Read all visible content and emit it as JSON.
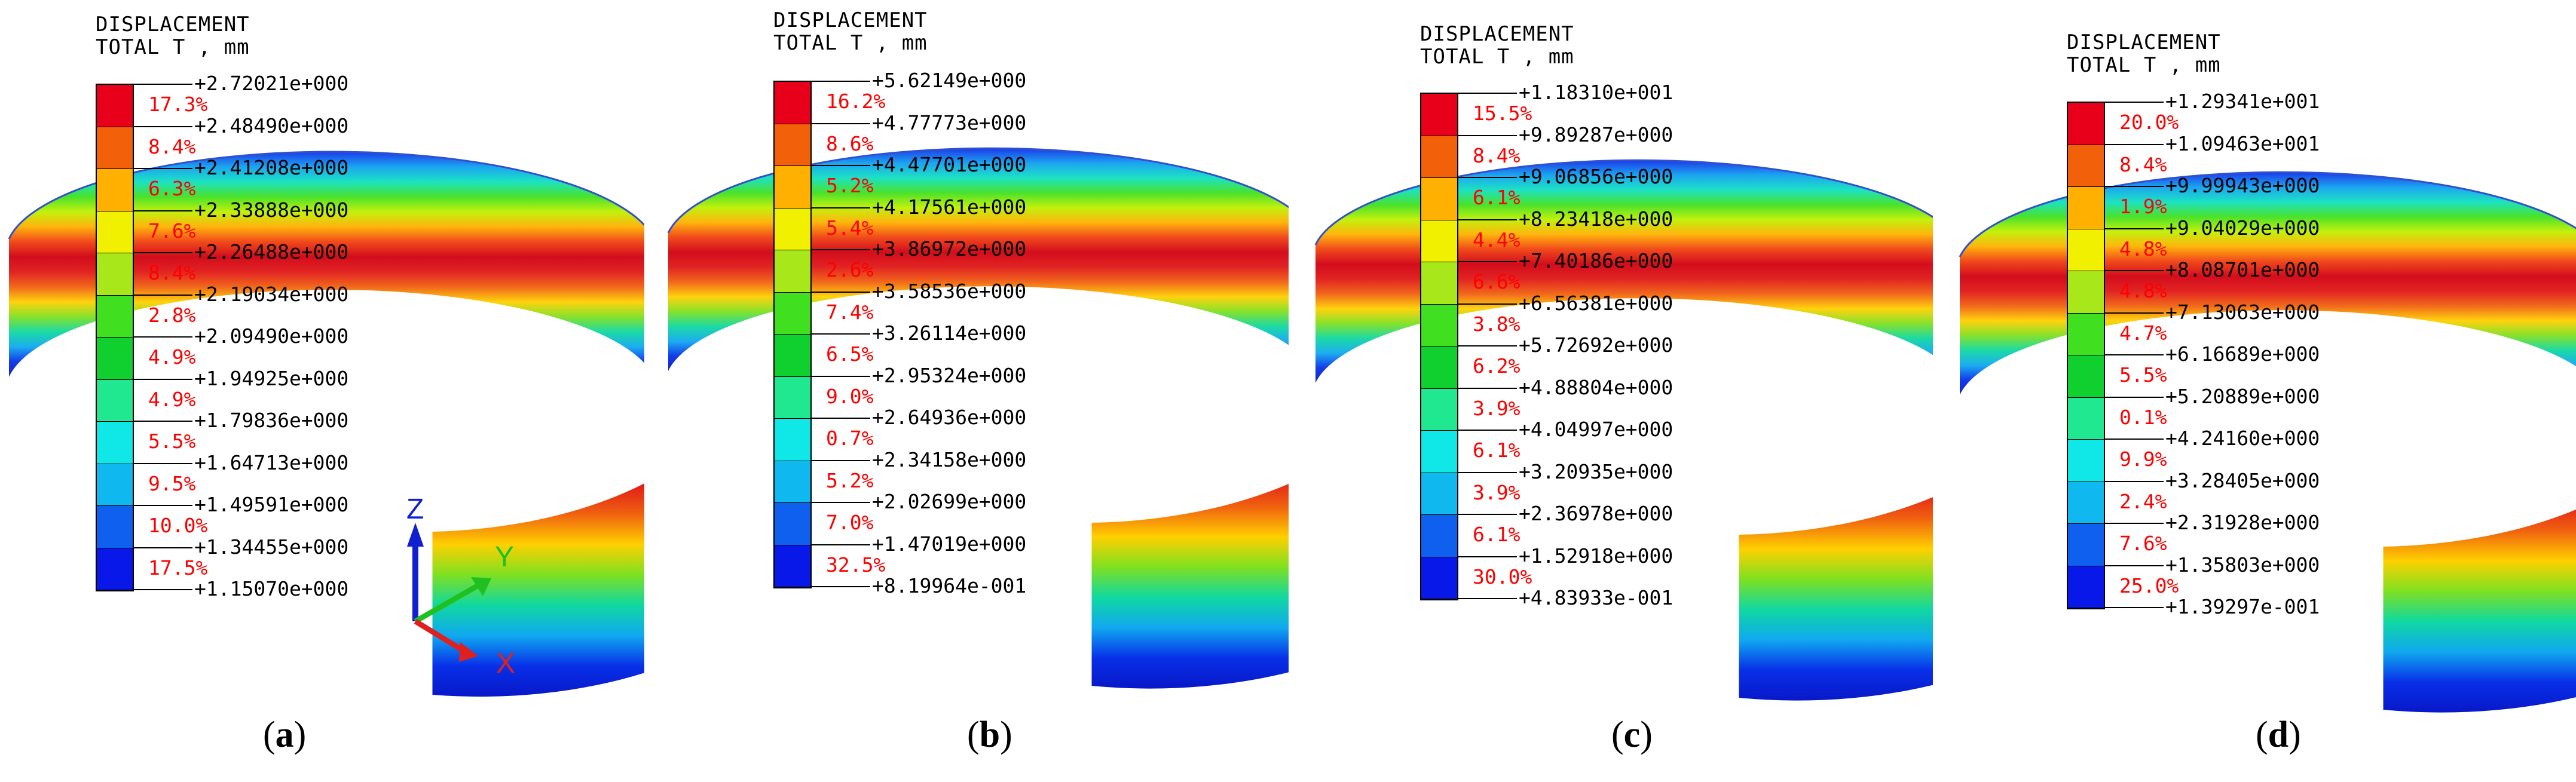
{
  "legend_title_line1": "DISPLACEMENT",
  "legend_title_line2": "TOTAL T , mm",
  "colors": [
    "#e8001a",
    "#f2600a",
    "#ffb000",
    "#f0f000",
    "#a8e81a",
    "#40e020",
    "#10d030",
    "#20e890",
    "#10e8e8",
    "#10b8f0",
    "#1060f0",
    "#0818e8"
  ],
  "axis_triad": {
    "z": "Z",
    "y": "Y",
    "x": "X"
  },
  "panels": [
    {
      "caption_open": "(",
      "caption_letter": "a",
      "caption_close": ")",
      "values": [
        "+2.72021e+000",
        "+2.48490e+000",
        "+2.41208e+000",
        "+2.33888e+000",
        "+2.26488e+000",
        "+2.19034e+000",
        "+2.09490e+000",
        "+1.94925e+000",
        "+1.79836e+000",
        "+1.64713e+000",
        "+1.49591e+000",
        "+1.34455e+000",
        "+1.15070e+000"
      ],
      "percents": [
        "17.3%",
        "8.4%",
        "6.3%",
        "7.6%",
        "8.4%",
        "2.8%",
        "4.9%",
        "4.9%",
        "5.5%",
        "9.5%",
        "10.0%",
        "17.5%"
      ]
    },
    {
      "caption_open": "(",
      "caption_letter": "b",
      "caption_close": ")",
      "values": [
        "+5.62149e+000",
        "+4.77773e+000",
        "+4.47701e+000",
        "+4.17561e+000",
        "+3.86972e+000",
        "+3.58536e+000",
        "+3.26114e+000",
        "+2.95324e+000",
        "+2.64936e+000",
        "+2.34158e+000",
        "+2.02699e+000",
        "+1.47019e+000",
        "+8.19964e-001"
      ],
      "percents": [
        "16.2%",
        "8.6%",
        "5.2%",
        "5.4%",
        "2.6%",
        "7.4%",
        "6.5%",
        "9.0%",
        "0.7%",
        "5.2%",
        "7.0%",
        "32.5%"
      ]
    },
    {
      "caption_open": "(",
      "caption_letter": "c",
      "caption_close": ")",
      "values": [
        "+1.18310e+001",
        "+9.89287e+000",
        "+9.06856e+000",
        "+8.23418e+000",
        "+7.40186e+000",
        "+6.56381e+000",
        "+5.72692e+000",
        "+4.88804e+000",
        "+4.04997e+000",
        "+3.20935e+000",
        "+2.36978e+000",
        "+1.52918e+000",
        "+4.83933e-001"
      ],
      "percents": [
        "15.5%",
        "8.4%",
        "6.1%",
        "4.4%",
        "6.6%",
        "3.8%",
        "6.2%",
        "3.9%",
        "6.1%",
        "3.9%",
        "6.1%",
        "30.0%"
      ]
    },
    {
      "caption_open": "(",
      "caption_letter": "d",
      "caption_close": ")",
      "values": [
        "+1.29341e+001",
        "+1.09463e+001",
        "+9.99943e+000",
        "+9.04029e+000",
        "+8.08701e+000",
        "+7.13063e+000",
        "+6.16689e+000",
        "+5.20889e+000",
        "+4.24160e+000",
        "+3.28405e+000",
        "+2.31928e+000",
        "+1.35803e+000",
        "+1.39297e-001"
      ],
      "percents": [
        "20.0%",
        "8.4%",
        "1.9%",
        "4.8%",
        "4.8%",
        "4.7%",
        "5.5%",
        "0.1%",
        "9.9%",
        "2.4%",
        "7.6%",
        "25.0%"
      ]
    }
  ]
}
